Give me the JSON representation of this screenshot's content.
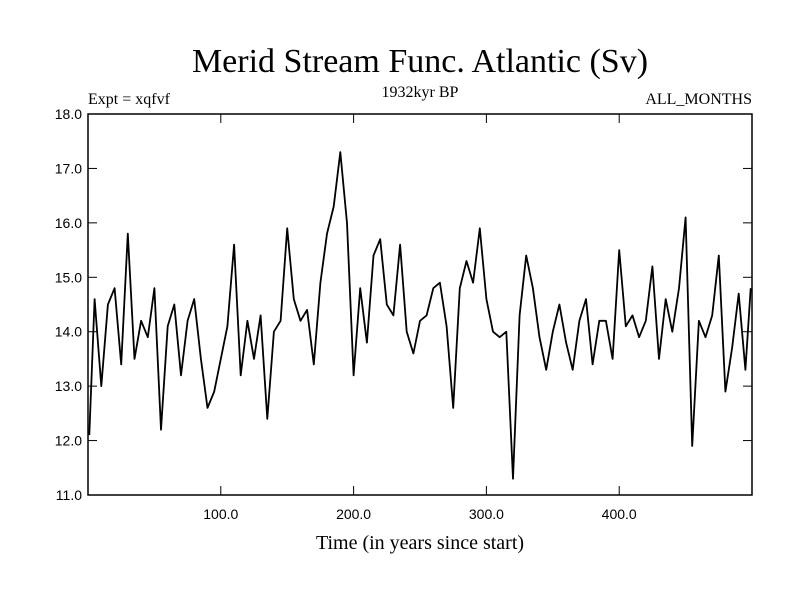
{
  "chart_data": {
    "type": "line",
    "title": "Merid Stream Func. Atlantic (Sv)",
    "subtitle": "1932kyr BP",
    "annotation_left": "Expt = xqfvf",
    "annotation_right": "ALL_MONTHS",
    "xlabel": "Time (in years since start)",
    "ylabel": "",
    "xlim": [
      0,
      500
    ],
    "ylim": [
      11.0,
      18.0
    ],
    "xticks": [
      100,
      200,
      300,
      400
    ],
    "xtick_labels": [
      "100.0",
      "200.0",
      "300.0",
      "400.0"
    ],
    "yticks": [
      11,
      12,
      13,
      14,
      15,
      16,
      17,
      18
    ],
    "ytick_labels": [
      "11.0",
      "12.0",
      "13.0",
      "14.0",
      "15.0",
      "16.0",
      "17.0",
      "18.0"
    ],
    "grid": false,
    "line_color": "#000000",
    "series": [
      {
        "name": "Merid Stream Func. Atlantic",
        "x": [
          1,
          5,
          10,
          15,
          20,
          25,
          30,
          35,
          40,
          45,
          50,
          55,
          60,
          65,
          70,
          75,
          80,
          85,
          90,
          95,
          100,
          105,
          110,
          115,
          120,
          125,
          130,
          135,
          140,
          145,
          150,
          155,
          160,
          165,
          170,
          175,
          180,
          185,
          190,
          195,
          200,
          205,
          210,
          215,
          220,
          225,
          230,
          235,
          240,
          245,
          250,
          255,
          260,
          265,
          270,
          275,
          280,
          285,
          290,
          295,
          300,
          305,
          310,
          315,
          320,
          325,
          330,
          335,
          340,
          345,
          350,
          355,
          360,
          365,
          370,
          375,
          380,
          385,
          390,
          395,
          400,
          405,
          410,
          415,
          420,
          425,
          430,
          435,
          440,
          445,
          450,
          455,
          460,
          465,
          470,
          475,
          480,
          485,
          490,
          495,
          499
        ],
        "values": [
          12.1,
          14.6,
          13.0,
          14.5,
          14.8,
          13.4,
          15.8,
          13.5,
          14.2,
          13.9,
          14.8,
          12.2,
          14.1,
          14.5,
          13.2,
          14.2,
          14.6,
          13.5,
          12.6,
          12.9,
          13.5,
          14.1,
          15.6,
          13.2,
          14.2,
          13.5,
          14.3,
          12.4,
          14.0,
          14.2,
          15.9,
          14.6,
          14.2,
          14.4,
          13.4,
          14.9,
          15.8,
          16.3,
          17.3,
          16.0,
          13.2,
          14.8,
          13.8,
          15.4,
          15.7,
          14.5,
          14.3,
          15.6,
          14.0,
          13.6,
          14.2,
          14.3,
          14.8,
          14.9,
          14.1,
          12.6,
          14.8,
          15.3,
          14.9,
          15.9,
          14.6,
          14.0,
          13.9,
          14.0,
          11.3,
          14.3,
          15.4,
          14.8,
          13.9,
          13.3,
          14.0,
          14.5,
          13.8,
          13.3,
          14.2,
          14.6,
          13.4,
          14.2,
          14.2,
          13.5,
          15.5,
          14.1,
          14.3,
          13.9,
          14.2,
          15.2,
          13.5,
          14.6,
          14.0,
          14.8,
          16.1,
          11.9,
          14.2,
          13.9,
          14.3,
          15.4,
          12.9,
          13.7,
          14.7,
          13.3,
          14.8
        ]
      }
    ]
  }
}
